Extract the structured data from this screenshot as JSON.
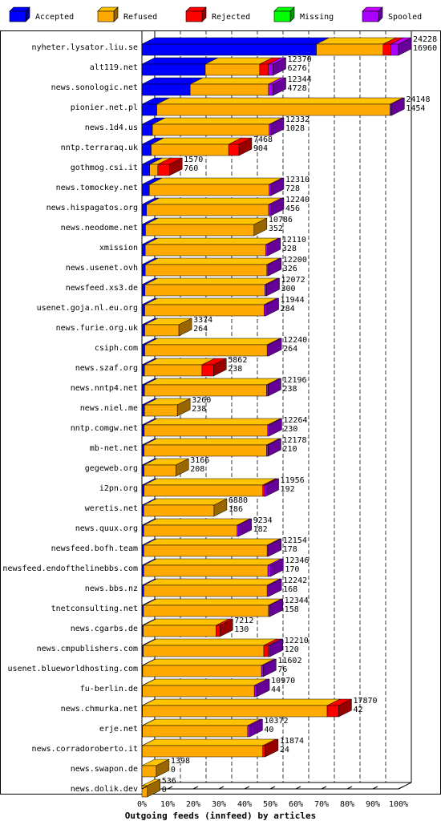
{
  "colors": {
    "Accepted": "#0000ff",
    "Refused": "#ffaa00",
    "Rejected": "#ff0000",
    "Missing": "#00ff00",
    "Spooled": "#aa00ff",
    "grid": "#000000",
    "background": "#ffffff"
  },
  "chart_data": {
    "type": "bar",
    "orientation": "horizontal",
    "stacked": true,
    "style": "3d",
    "title": "Outgoing feeds (innfeed) by articles",
    "xlabel": "",
    "ylabel": "",
    "x_unit": "%",
    "xlim": [
      0,
      100
    ],
    "x_ticks": [
      "0%",
      "10%",
      "20%",
      "30%",
      "40%",
      "50%",
      "60%",
      "70%",
      "80%",
      "90%",
      "100%"
    ],
    "grid": "vertical dashed",
    "legend_position": "top",
    "legend": [
      "Accepted",
      "Refused",
      "Rejected",
      "Missing",
      "Spooled"
    ],
    "categories": [
      "nyheter.lysator.liu.se",
      "alt119.net",
      "news.sonologic.net",
      "pionier.net.pl",
      "news.1d4.us",
      "nntp.terraraq.uk",
      "gothmog.csi.it",
      "news.tomockey.net",
      "news.hispagatos.org",
      "news.neodome.net",
      "xmission",
      "news.usenet.ovh",
      "newsfeed.xs3.de",
      "usenet.goja.nl.eu.org",
      "news.furie.org.uk",
      "csiph.com",
      "news.szaf.org",
      "news.nntp4.net",
      "news.niel.me",
      "nntp.comgw.net",
      "mb-net.net",
      "gegeweb.org",
      "i2pn.org",
      "weretis.net",
      "news.quux.org",
      "newsfeed.bofh.team",
      "newsfeed.endofthelinebbs.com",
      "news.bbs.nz",
      "tnetconsulting.net",
      "news.cgarbs.de",
      "news.cmpublishers.com",
      "usenet.blueworldhosting.com",
      "fu-berlin.de",
      "news.chmurka.net",
      "erje.net",
      "news.corradoroberto.it",
      "news.swapon.de",
      "news.dolik.dev"
    ],
    "offered_labels": [
      "24228",
      "12370",
      "12344",
      "24148",
      "12332",
      "7468",
      "1570",
      "12310",
      "12240",
      "10786",
      "12110",
      "12200",
      "12072",
      "11944",
      "3374",
      "12240",
      "5862",
      "12196",
      "3260",
      "12264",
      "12178",
      "3166",
      "11956",
      "6880",
      "9234",
      "12154",
      "12346",
      "12242",
      "12344",
      "7212",
      "12210",
      "11602",
      "10970",
      "17870",
      "10372",
      "11874",
      "1398",
      "536"
    ],
    "accepted_labels": [
      "16960",
      "6276",
      "4728",
      "1454",
      "1028",
      "904",
      "760",
      "728",
      "456",
      "352",
      "328",
      "326",
      "300",
      "284",
      "264",
      "264",
      "238",
      "238",
      "238",
      "230",
      "210",
      "208",
      "192",
      "186",
      "182",
      "178",
      "170",
      "168",
      "158",
      "130",
      "120",
      "76",
      "44",
      "42",
      "40",
      "24",
      "0",
      "0"
    ],
    "series": [
      {
        "name": "Accepted",
        "values": [
          68.0,
          24.7,
          18.8,
          5.8,
          4.1,
          3.6,
          3.0,
          2.9,
          1.8,
          1.4,
          1.3,
          1.3,
          1.2,
          1.1,
          1.1,
          1.1,
          1.0,
          1.0,
          1.0,
          0.9,
          0.8,
          0.8,
          0.8,
          0.7,
          0.7,
          0.7,
          0.7,
          0.7,
          0.6,
          0.5,
          0.5,
          0.3,
          0.2,
          0.2,
          0.2,
          0.1,
          0.0,
          0.0
        ]
      },
      {
        "name": "Refused",
        "values": [
          26.0,
          21.2,
          30.5,
          90.9,
          45.5,
          30.2,
          3.2,
          46.7,
          47.6,
          42.3,
          47.0,
          47.4,
          46.7,
          46.5,
          13.3,
          47.7,
          22.4,
          47.6,
          12.8,
          48.1,
          47.8,
          12.4,
          46.3,
          27.4,
          36.4,
          48.1,
          48.4,
          48.1,
          48.7,
          28.4,
          47.0,
          46.3,
          43.6,
          72.0,
          41.0,
          47.0,
          5.6,
          2.1
        ]
      },
      {
        "name": "Rejected",
        "values": [
          3.0,
          3.4,
          0.0,
          0.0,
          0.0,
          4.0,
          4.5,
          0.0,
          0.0,
          0.0,
          0.0,
          0.0,
          0.0,
          0.0,
          0.0,
          0.0,
          4.5,
          0.0,
          0.0,
          0.0,
          0.0,
          0.0,
          0.6,
          0.0,
          0.0,
          0.0,
          0.0,
          0.0,
          0.0,
          1.5,
          1.8,
          0.0,
          0.0,
          4.5,
          0.0,
          1.0,
          0.0,
          0.0
        ]
      },
      {
        "name": "Missing",
        "values": [
          0,
          0,
          0,
          0,
          0,
          0,
          0,
          0,
          0,
          0,
          0,
          0,
          0,
          0,
          0,
          0,
          0,
          0,
          0,
          0,
          0,
          0,
          0,
          0,
          0,
          0,
          0,
          0,
          0,
          0,
          0,
          0,
          0,
          0,
          0,
          0,
          0,
          0
        ]
      },
      {
        "name": "Spooled",
        "values": [
          3.0,
          1.8,
          1.8,
          0.6,
          0.7,
          0.0,
          0.0,
          0.7,
          0.9,
          0.0,
          0.7,
          0.6,
          0.7,
          0.7,
          0.0,
          0.6,
          0.0,
          0.6,
          0.0,
          0.5,
          0.6,
          0.0,
          0.6,
          0.0,
          0.6,
          0.5,
          1.0,
          0.6,
          0.6,
          0.0,
          0.6,
          0.7,
          0.9,
          0.0,
          0.8,
          0.0,
          0.0,
          0.0
        ]
      }
    ]
  }
}
